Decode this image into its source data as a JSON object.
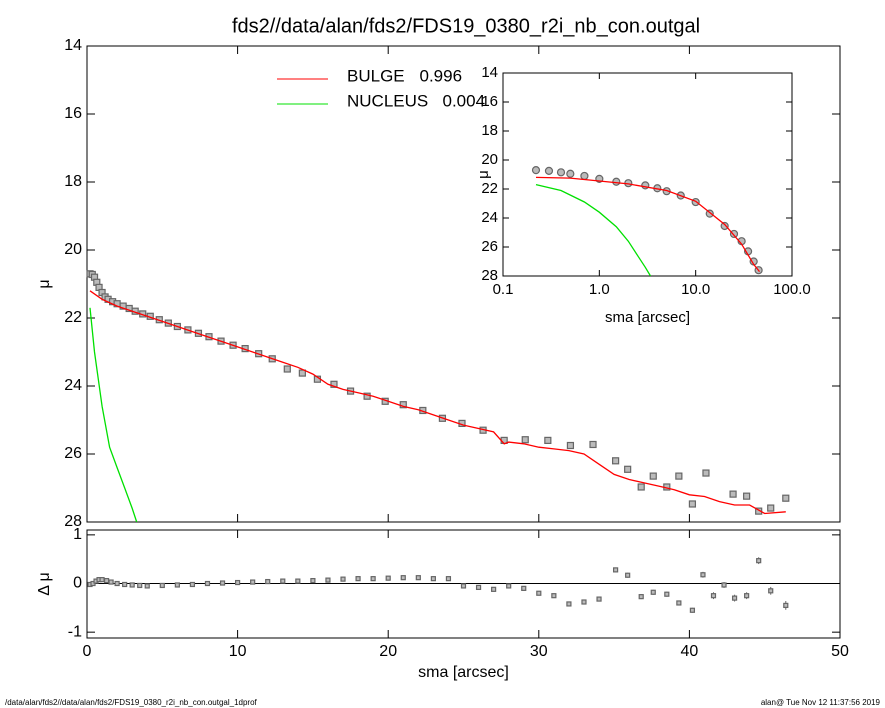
{
  "chart_data": [
    {
      "type": "line",
      "title": "fds2//data/alan/fds2/FDS19_0380_r2i_nb_con.outgal",
      "y_label": "μ",
      "xlim": [
        0,
        50
      ],
      "xticks": [
        0,
        10,
        20,
        30,
        40,
        50
      ],
      "show_xtick_labels": false,
      "ylim": [
        28,
        14
      ],
      "yticks": [
        14,
        16,
        18,
        20,
        22,
        24,
        26,
        28
      ],
      "series": [
        {
          "marker": "square",
          "color": "#666666",
          "x": [
            0.2,
            0.35,
            0.5,
            0.65,
            0.8,
            1.0,
            1.2,
            1.4,
            1.7,
            2.0,
            2.4,
            2.8,
            3.2,
            3.7,
            4.2,
            4.8,
            5.4,
            6.0,
            6.7,
            7.4,
            8.1,
            8.9,
            9.7,
            10.5,
            11.4,
            12.3,
            13.3,
            14.3,
            15.3,
            16.4,
            17.5,
            18.6,
            19.8,
            21.0,
            22.3,
            23.6,
            24.9,
            26.3,
            27.7,
            29.1,
            30.6,
            32.1,
            33.6,
            35.1,
            35.9,
            36.8,
            37.6,
            38.5,
            39.3,
            40.2,
            41.1,
            42.9,
            43.8,
            44.6,
            45.4,
            46.4
          ],
          "values": [
            20.7,
            20.72,
            20.8,
            20.95,
            21.1,
            21.25,
            21.38,
            21.45,
            21.52,
            21.58,
            21.65,
            21.72,
            21.8,
            21.88,
            21.95,
            22.05,
            22.15,
            22.25,
            22.35,
            22.45,
            22.55,
            22.68,
            22.8,
            22.9,
            23.05,
            23.2,
            23.5,
            23.62,
            23.8,
            23.95,
            24.15,
            24.3,
            24.45,
            24.55,
            24.72,
            24.95,
            25.1,
            25.3,
            25.6,
            25.58,
            25.6,
            25.75,
            25.72,
            26.2,
            26.45,
            26.97,
            26.65,
            26.97,
            26.65,
            27.47,
            26.56,
            27.18,
            27.24,
            27.68,
            27.59,
            27.3
          ]
        },
        {
          "name": "BULGE",
          "fraction": 0.996,
          "color": "#ff0000",
          "x": [
            0.2,
            1,
            2,
            3,
            4,
            5,
            6,
            7,
            8,
            9,
            10,
            11,
            12,
            13,
            14,
            15,
            16,
            17,
            18,
            19,
            20,
            21,
            22,
            23,
            24,
            25,
            26,
            27,
            27.7,
            28,
            29,
            30,
            31,
            32,
            33,
            34,
            35,
            36,
            37,
            38,
            39,
            40,
            41,
            42,
            43,
            44,
            45,
            46.4
          ],
          "values": [
            21.2,
            21.45,
            21.65,
            21.8,
            21.95,
            22.1,
            22.25,
            22.4,
            22.55,
            22.7,
            22.85,
            23.0,
            23.15,
            23.3,
            23.45,
            23.65,
            23.95,
            24.1,
            24.2,
            24.3,
            24.45,
            24.6,
            24.7,
            24.85,
            25.0,
            25.15,
            25.25,
            25.35,
            25.7,
            25.65,
            25.7,
            25.8,
            25.85,
            25.9,
            26.0,
            26.3,
            26.6,
            26.75,
            26.85,
            26.95,
            27.05,
            27.2,
            27.25,
            27.4,
            27.5,
            27.5,
            27.75,
            27.7
          ]
        },
        {
          "name": "NUCLEUS",
          "fraction": 0.004,
          "color": "#00e000",
          "x": [
            0.2,
            0.5,
            1.0,
            1.5,
            2.0,
            2.5,
            3.0,
            3.3
          ],
          "values": [
            21.7,
            23.0,
            24.6,
            25.8,
            26.4,
            27.0,
            27.6,
            28.0
          ]
        }
      ]
    },
    {
      "type": "scatter",
      "y_label": "Δ μ",
      "x_label": "sma [arcsec]",
      "xlim": [
        0,
        50
      ],
      "xticks": [
        0,
        10,
        20,
        30,
        40,
        50
      ],
      "ylim": [
        -1.12,
        1.1
      ],
      "yticks": [
        -1,
        0,
        1
      ],
      "zero_line": true,
      "series": [
        {
          "marker": "square",
          "color": "#666666",
          "x": [
            0.2,
            0.4,
            0.6,
            0.8,
            1.0,
            1.3,
            1.6,
            2.0,
            2.5,
            3,
            3.5,
            4,
            5,
            6,
            7,
            8,
            9,
            10,
            11,
            12,
            13,
            14,
            15,
            16,
            17,
            18,
            19,
            20,
            21,
            22,
            23,
            24,
            25,
            26,
            27,
            28,
            29,
            30,
            31,
            32,
            33,
            34,
            35.1,
            35.9,
            36.8,
            37.6,
            38.5,
            39.3,
            40.2,
            40.9,
            41.6,
            42.3,
            43.0,
            43.8,
            44.6,
            45.4,
            46.4
          ],
          "values": [
            -0.02,
            0,
            0.05,
            0.08,
            0.08,
            0.06,
            0.03,
            0,
            -0.02,
            -0.03,
            -0.04,
            -0.05,
            -0.04,
            -0.03,
            -0.02,
            0,
            0.01,
            0.02,
            0.03,
            0.04,
            0.05,
            0.05,
            0.06,
            0.07,
            0.09,
            0.1,
            0.1,
            0.11,
            0.12,
            0.12,
            0.1,
            0.1,
            -0.05,
            -0.08,
            -0.12,
            -0.05,
            -0.1,
            -0.2,
            -0.25,
            -0.42,
            -0.38,
            -0.32,
            0.28,
            0.17,
            -0.27,
            -0.18,
            -0.22,
            -0.4,
            -0.55,
            0.18,
            -0.25,
            -0.03,
            -0.3,
            -0.25,
            0.47,
            -0.15,
            -0.45
          ],
          "errors": [
            null,
            null,
            null,
            null,
            null,
            null,
            null,
            null,
            null,
            null,
            null,
            null,
            null,
            null,
            null,
            null,
            null,
            null,
            null,
            null,
            null,
            null,
            null,
            null,
            null,
            null,
            null,
            null,
            null,
            null,
            null,
            null,
            null,
            null,
            null,
            null,
            null,
            null,
            null,
            null,
            null,
            null,
            0.05,
            0.05,
            0.05,
            0.05,
            0.05,
            0.05,
            0.05,
            0.06,
            0.07,
            0.06,
            0.07,
            0.07,
            0.07,
            0.08,
            0.09
          ]
        }
      ]
    },
    {
      "type": "line",
      "log_x": true,
      "y_label": "μ",
      "x_label": "sma [arcsec]",
      "xlim": [
        0.1,
        100
      ],
      "xticks": [
        0.1,
        {
          "value": 1,
          "label": "1.0"
        },
        {
          "value": 10,
          "label": "10.0"
        },
        {
          "value": 100,
          "label": "100.0"
        }
      ],
      "ylim": [
        28,
        14
      ],
      "yticks": [
        14,
        16,
        18,
        20,
        22,
        24,
        26,
        28
      ],
      "series": [
        {
          "marker": "circle",
          "color": "#666666",
          "x": [
            0.22,
            0.3,
            0.4,
            0.5,
            0.7,
            1,
            1.5,
            2,
            3,
            4,
            5,
            7,
            10,
            14,
            20,
            25,
            30,
            35,
            40,
            45
          ],
          "values": [
            20.7,
            20.75,
            20.85,
            20.95,
            21.1,
            21.3,
            21.5,
            21.6,
            21.75,
            21.95,
            22.15,
            22.45,
            22.9,
            23.7,
            24.55,
            25.1,
            25.6,
            26.3,
            27.0,
            27.6
          ]
        },
        {
          "color": "#ff0000",
          "x": [
            0.22,
            0.5,
            1,
            2,
            5,
            10,
            20,
            30,
            40,
            46
          ],
          "values": [
            21.2,
            21.25,
            21.45,
            21.65,
            22.1,
            22.85,
            24.45,
            25.8,
            27.2,
            27.7
          ]
        },
        {
          "color": "#00e000",
          "x": [
            0.22,
            0.4,
            0.7,
            1,
            1.5,
            2,
            2.5,
            3,
            3.4
          ],
          "values": [
            21.7,
            22.1,
            22.9,
            23.6,
            24.6,
            25.6,
            26.6,
            27.4,
            28.0
          ]
        }
      ]
    }
  ],
  "footer": {
    "left": "/data/alan/fds2//data/alan/fds2/FDS19_0380_r2i_nb_con.outgal_1dprof",
    "right": "alan@  Tue Nov 12 11:37:56 2019"
  }
}
